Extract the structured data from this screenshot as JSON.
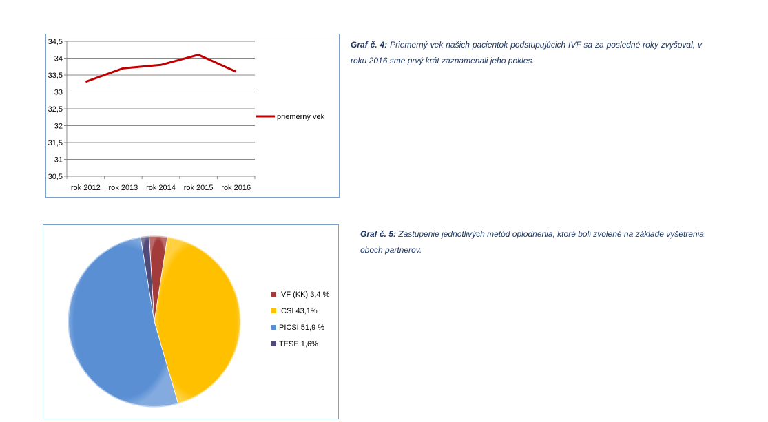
{
  "chart_data": [
    {
      "type": "line",
      "categories": [
        "rok 2012",
        "rok 2013",
        "rok 2014",
        "rok 2015",
        "rok 2016"
      ],
      "series": [
        {
          "name": "priemerný vek",
          "values": [
            33.3,
            33.7,
            33.8,
            34.1,
            33.6
          ],
          "color": "#c00000"
        }
      ],
      "y_ticks": [
        "34,5",
        "34",
        "33,5",
        "33",
        "32,5",
        "32",
        "31,5",
        "31",
        "30,5"
      ],
      "ylim": [
        30.5,
        34.5
      ],
      "grid": true,
      "legend_position": "right"
    },
    {
      "type": "pie",
      "series": [
        {
          "labels": [
            "IVF (KK) 3,4 %",
            "ICSI 43,1%",
            "PICSI 51,9 %",
            "TESE 1,6%"
          ],
          "values": [
            3.4,
            43.1,
            51.9,
            1.6
          ],
          "colors": [
            "#a33b3b",
            "#ffc000",
            "#5a8fd4",
            "#4f4a78"
          ]
        }
      ],
      "legend_position": "right"
    }
  ],
  "captions": {
    "graf4": {
      "label": "Graf č. 4:",
      "text": " Priemerný  vek našich pacientok podstupujúcich IVF sa za posledné roky zvyšoval, v roku 2016 sme prvý krát zaznamenali jeho pokles."
    },
    "graf5": {
      "label": "Graf č. 5:",
      "text": "  Zastúpenie jednotlivých metód oplodnenia, ktoré boli zvolené na základe vyšetrenia oboch partnerov."
    }
  }
}
